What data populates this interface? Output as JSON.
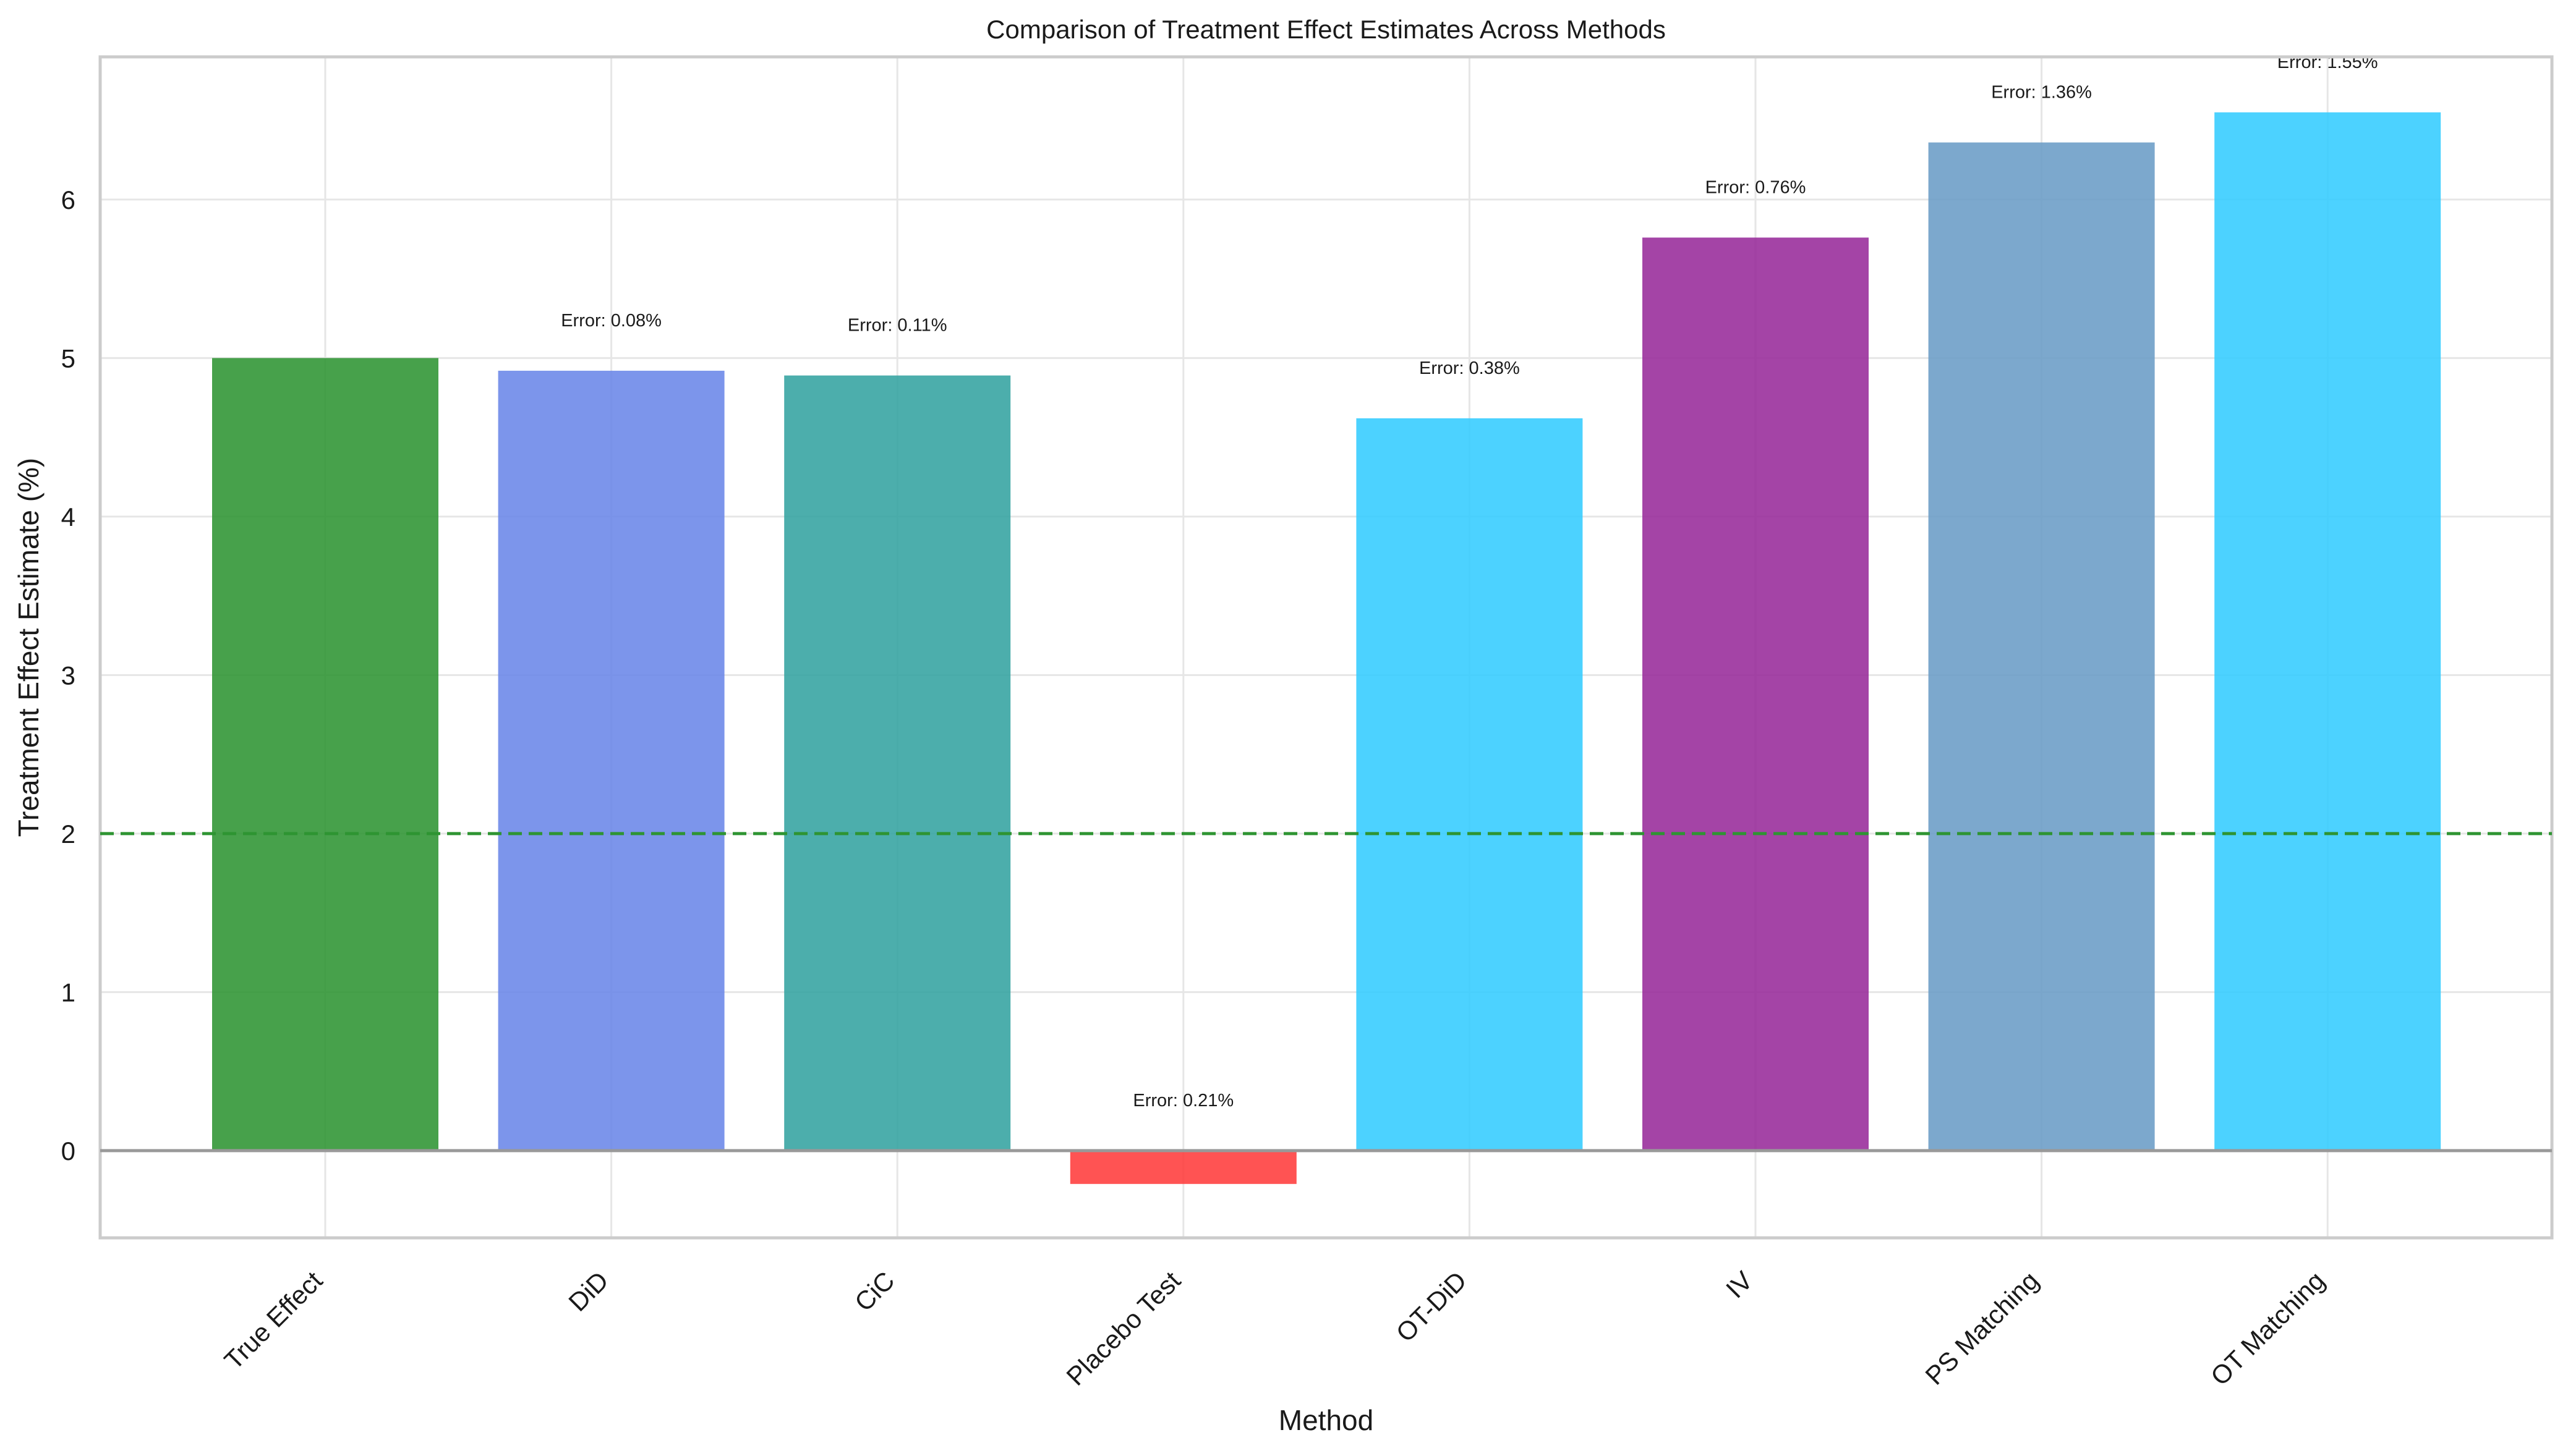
{
  "chart_data": {
    "type": "bar",
    "title": "Comparison of Treatment Effect Estimates Across Methods",
    "xlabel": "Method",
    "ylabel": "Treatment Effect Estimate (%)",
    "ylim": [
      -0.55,
      6.9
    ],
    "yticks": [
      0,
      1,
      2,
      3,
      4,
      5,
      6
    ],
    "grid": true,
    "categories": [
      "True Effect",
      "DiD",
      "CiC",
      "Placebo Test",
      "OT-DiD",
      "IV",
      "PS Matching",
      "OT Matching"
    ],
    "values": [
      5.0,
      4.92,
      4.89,
      -0.21,
      4.62,
      5.76,
      6.36,
      6.55
    ],
    "bar_colors": [
      "#2e9432",
      "#6a86e8",
      "#33a3a0",
      "#ff3b3b",
      "#33ccff",
      "#972a9a",
      "#6a9cc6",
      "#33ccff"
    ],
    "annotations": [
      "",
      "Error: 0.08%",
      "Error: 0.11%",
      "Error: 0.21%",
      "Error: 0.38%",
      "Error: 0.76%",
      "Error: 1.36%",
      "Error: 1.55%"
    ],
    "reference_lines": [
      {
        "y": 2.0,
        "style": "dashed",
        "color": "#2e9432"
      },
      {
        "y": 0.0,
        "style": "solid",
        "color": "#999999"
      }
    ]
  }
}
